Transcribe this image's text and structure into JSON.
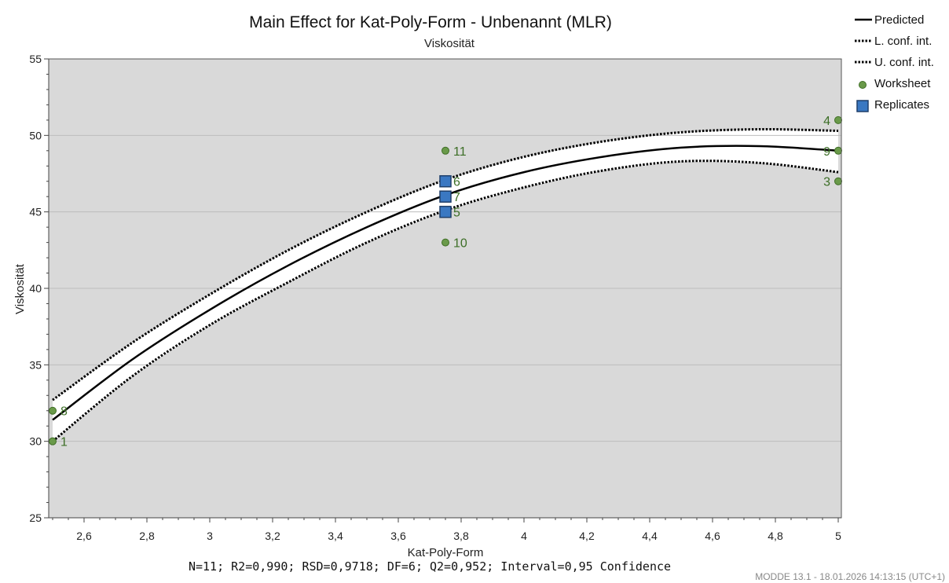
{
  "chart_data": {
    "type": "line",
    "title": "Main Effect for Kat-Poly-Form - Unbenannt (MLR)",
    "subtitle": "Viskosität",
    "xlabel": "Kat-Poly-Form",
    "ylabel": "Viskosität",
    "xlim": [
      2.5,
      5.0
    ],
    "ylim": [
      25,
      55
    ],
    "x_ticks": [
      2.6,
      2.8,
      3.0,
      3.2,
      3.4,
      3.6,
      3.8,
      4.0,
      4.2,
      4.4,
      4.6,
      4.8,
      5.0
    ],
    "x_tick_labels": [
      "2,6",
      "2,8",
      "3",
      "3,2",
      "3,4",
      "3,6",
      "3,8",
      "4",
      "4,2",
      "4,4",
      "4,6",
      "4,8",
      "5"
    ],
    "y_ticks": [
      25,
      30,
      35,
      40,
      45,
      50,
      55
    ],
    "y_tick_labels": [
      "25",
      "30",
      "35",
      "40",
      "45",
      "50",
      "55"
    ],
    "gridlines": [
      30,
      35,
      40,
      45,
      50
    ],
    "series": [
      {
        "name": "Predicted",
        "style": "solid",
        "x": [
          2.5,
          2.75,
          3.0,
          3.25,
          3.5,
          3.75,
          4.0,
          4.25,
          4.5,
          4.75,
          5.0
        ],
        "y": [
          31.4,
          35.3,
          38.6,
          41.5,
          44.0,
          46.1,
          47.6,
          48.6,
          49.2,
          49.3,
          49.0
        ]
      },
      {
        "name": "L. conf. int.",
        "style": "dotted",
        "x": [
          2.5,
          2.75,
          3.0,
          3.25,
          3.5,
          3.75,
          4.0,
          4.25,
          4.5,
          4.75,
          5.0
        ],
        "y": [
          30.0,
          34.2,
          37.6,
          40.4,
          43.0,
          45.1,
          46.6,
          47.7,
          48.3,
          48.2,
          47.6
        ]
      },
      {
        "name": "U. conf. int.",
        "style": "dotted",
        "x": [
          2.5,
          2.75,
          3.0,
          3.25,
          3.5,
          3.75,
          4.0,
          4.25,
          4.5,
          4.75,
          5.0
        ],
        "y": [
          32.7,
          36.4,
          39.6,
          42.5,
          45.0,
          47.1,
          48.6,
          49.6,
          50.2,
          50.4,
          50.3
        ]
      }
    ],
    "worksheet_points": [
      {
        "label": "1",
        "x": 2.5,
        "y": 30
      },
      {
        "label": "8",
        "x": 2.5,
        "y": 32
      },
      {
        "label": "11",
        "x": 3.75,
        "y": 49
      },
      {
        "label": "10",
        "x": 3.75,
        "y": 43
      },
      {
        "label": "4",
        "x": 5.0,
        "y": 51
      },
      {
        "label": "9",
        "x": 5.0,
        "y": 49
      },
      {
        "label": "3",
        "x": 5.0,
        "y": 47
      }
    ],
    "replicate_points": [
      {
        "label": "6",
        "x": 3.75,
        "y": 47
      },
      {
        "label": "7",
        "x": 3.75,
        "y": 46
      },
      {
        "label": "5",
        "x": 3.75,
        "y": 45
      }
    ],
    "legend": {
      "position": "right",
      "entries": [
        {
          "name": "Predicted",
          "kind": "solid-line"
        },
        {
          "name": "L. conf. int.",
          "kind": "dotted-line"
        },
        {
          "name": "U. conf. int.",
          "kind": "dotted-line"
        },
        {
          "name": "Worksheet",
          "kind": "circle"
        },
        {
          "name": "Replicates",
          "kind": "square"
        }
      ]
    },
    "colors": {
      "plot_bg": "#d9d9d9",
      "band": "#ffffff",
      "line": "#000000",
      "worksheet": "#6a9a4a",
      "worksheet_edge": "#3f6e26",
      "replicate": "#3a78c2",
      "replicate_edge": "#1f3f6a",
      "point_label": "#3c6e26"
    }
  },
  "stats_line": "N=11; R2=0,990; RSD=0,9718; DF=6; Q2=0,952; Interval=0,95 Confidence",
  "footer": "MODDE 13.1 - 18.01.2026 14:13:15 (UTC+1)"
}
